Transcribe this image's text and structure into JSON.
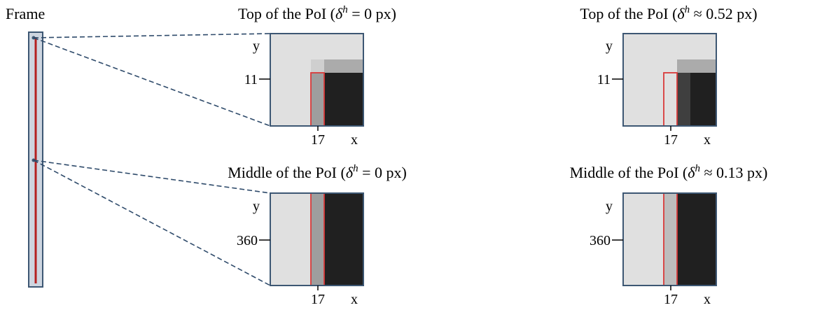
{
  "frame": {
    "label": "Frame"
  },
  "panels": [
    {
      "id": "top-left",
      "title_prefix": "Top of the PoI (",
      "delta_symbol": "δ",
      "delta_sup": "h",
      "title_relation": "= 0 px)",
      "y_axis_label": "y",
      "y_tick": "11",
      "x_tick": "17",
      "x_axis_label": "x",
      "colors": {
        "bg": "#e0e0e0",
        "highlight": "#9e9e9e",
        "dark": "#202020",
        "upper_light": "#cfcfcf",
        "upper_gray": "#ababab",
        "border": "#3d5773",
        "box": "#d93a3a"
      }
    },
    {
      "id": "top-right",
      "title_prefix": "Top of the PoI (",
      "delta_symbol": "δ",
      "delta_sup": "h",
      "title_relation": "≈ 0.52 px)",
      "y_axis_label": "y",
      "y_tick": "11",
      "x_tick": "17",
      "x_axis_label": "x",
      "colors": {
        "bg": "#e0e0e0",
        "highlight": "#3f3f3f",
        "dark": "#202020",
        "upper_light": "#cfcfcf",
        "upper_gray": "#ababab",
        "border": "#3d5773",
        "box": "#d93a3a"
      }
    },
    {
      "id": "middle-left",
      "title_prefix": "Middle of the PoI (",
      "delta_symbol": "δ",
      "delta_sup": "h",
      "title_relation": "= 0 px)",
      "y_axis_label": "y",
      "y_tick": "360",
      "x_tick": "17",
      "x_axis_label": "x",
      "colors": {
        "bg": "#e0e0e0",
        "highlight": "#9e9e9e",
        "dark": "#202020",
        "border": "#3d5773",
        "box": "#d93a3a"
      }
    },
    {
      "id": "middle-right",
      "title_prefix": "Middle of the PoI (",
      "delta_symbol": "δ",
      "delta_sup": "h",
      "title_relation": "≈ 0.13 px)",
      "y_axis_label": "y",
      "y_tick": "360",
      "x_tick": "17",
      "x_axis_label": "x",
      "colors": {
        "bg": "#e0e0e0",
        "highlight": "#bdbdbd",
        "dark": "#202020",
        "border": "#3d5773",
        "box": "#d93a3a"
      }
    }
  ],
  "colors": {
    "frame_fill": "#cdd5e0",
    "frame_border": "#3d5773",
    "line": "#b52020",
    "connector": "#2f4b6b"
  }
}
